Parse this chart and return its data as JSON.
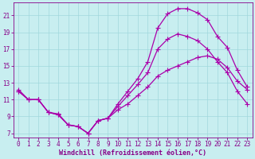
{
  "xlabel": "Windchill (Refroidissement éolien,°C)",
  "bg_color": "#c8eef0",
  "line_color": "#aa00aa",
  "grid_color": "#a0d8dc",
  "axis_color": "#880088",
  "xlim_min": -0.5,
  "xlim_max": 23.5,
  "ylim_min": 6.5,
  "ylim_max": 22.5,
  "xticks": [
    0,
    1,
    2,
    3,
    4,
    5,
    6,
    7,
    8,
    9,
    10,
    11,
    12,
    13,
    14,
    15,
    16,
    17,
    18,
    19,
    20,
    21,
    22,
    23
  ],
  "yticks": [
    7,
    9,
    11,
    13,
    15,
    17,
    19,
    21
  ],
  "curve1_x": [
    0,
    1,
    2,
    3,
    4,
    5,
    6,
    7,
    8,
    9,
    10,
    11,
    12,
    13,
    14,
    15,
    16,
    17,
    18,
    19,
    20,
    21,
    22,
    23
  ],
  "curve1_y": [
    12.2,
    11.0,
    11.0,
    9.5,
    9.3,
    8.0,
    7.8,
    7.0,
    8.5,
    8.8,
    10.5,
    12.0,
    13.5,
    15.5,
    19.5,
    21.2,
    21.8,
    21.8,
    21.3,
    20.5,
    18.5,
    17.2,
    14.5,
    12.5
  ],
  "curve2_x": [
    0,
    1,
    2,
    3,
    4,
    5,
    6,
    7,
    8,
    9,
    10,
    11,
    12,
    13,
    14,
    15,
    16,
    17,
    18,
    19,
    20,
    21,
    22,
    23
  ],
  "curve2_y": [
    12.0,
    11.0,
    11.0,
    9.5,
    9.2,
    8.0,
    7.8,
    7.0,
    8.5,
    8.8,
    10.2,
    11.5,
    12.8,
    14.2,
    17.0,
    18.2,
    18.8,
    18.5,
    18.0,
    17.0,
    15.5,
    14.2,
    12.0,
    10.5
  ],
  "curve3_x": [
    0,
    1,
    2,
    3,
    4,
    5,
    6,
    7,
    8,
    9,
    10,
    11,
    12,
    13,
    14,
    15,
    16,
    17,
    18,
    19,
    20,
    21,
    22,
    23
  ],
  "curve3_y": [
    12.0,
    11.0,
    11.0,
    9.5,
    9.2,
    8.0,
    7.8,
    7.0,
    8.5,
    8.8,
    9.8,
    10.5,
    11.5,
    12.5,
    13.8,
    14.5,
    15.0,
    15.5,
    16.0,
    16.2,
    15.8,
    14.8,
    13.2,
    12.2
  ],
  "tick_fontsize": 5.5,
  "xlabel_fontsize": 6.0
}
